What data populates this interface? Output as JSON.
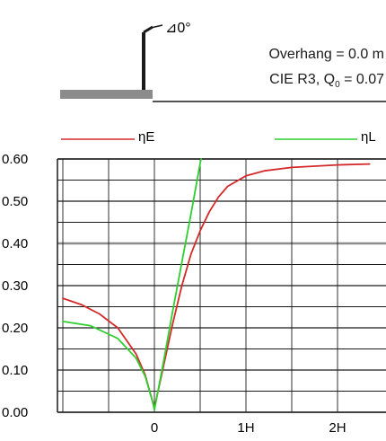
{
  "header": {
    "tilt_label": "⊿0°",
    "overhang": "Overhang =  0.0 m",
    "surface_prefix": "CIE R3, Q",
    "surface_sub": "0",
    "surface_suffix": " = 0.07"
  },
  "colors": {
    "eta_e": "#d42a2a",
    "eta_l": "#2fcf2f",
    "grid": "#1a1a1a",
    "highlight_grid": "#8c8c8c",
    "ground": "#8c8c8c"
  },
  "chart_data": {
    "type": "line",
    "x_ticks": [
      "0",
      "1H",
      "2H"
    ],
    "y_ticks": [
      "0.60",
      "0.50",
      "0.40",
      "0.30",
      "0.20",
      "0.10",
      "0.00"
    ],
    "ylim": [
      0,
      0.6
    ],
    "xlim": [
      -1.0,
      2.35
    ],
    "grid": true,
    "legend_position": "top",
    "series": [
      {
        "name": "ηE",
        "color": "#d42a2a",
        "points": [
          [
            -1.0,
            0.27
          ],
          [
            -0.8,
            0.255
          ],
          [
            -0.6,
            0.233
          ],
          [
            -0.4,
            0.2
          ],
          [
            -0.2,
            0.138
          ],
          [
            -0.1,
            0.088
          ],
          [
            -0.02,
            0.025
          ],
          [
            0.0,
            0.01
          ],
          [
            0.1,
            0.11
          ],
          [
            0.2,
            0.21
          ],
          [
            0.3,
            0.3
          ],
          [
            0.4,
            0.375
          ],
          [
            0.5,
            0.43
          ],
          [
            0.6,
            0.475
          ],
          [
            0.7,
            0.51
          ],
          [
            0.8,
            0.535
          ],
          [
            1.0,
            0.56
          ],
          [
            1.2,
            0.572
          ],
          [
            1.5,
            0.58
          ],
          [
            2.0,
            0.586
          ],
          [
            2.35,
            0.588
          ]
        ]
      },
      {
        "name": "ηL",
        "color": "#2fcf2f",
        "points": [
          [
            -1.0,
            0.215
          ],
          [
            -0.7,
            0.205
          ],
          [
            -0.4,
            0.175
          ],
          [
            -0.2,
            0.128
          ],
          [
            -0.1,
            0.085
          ],
          [
            -0.02,
            0.025
          ],
          [
            0.0,
            0.005
          ],
          [
            0.1,
            0.12
          ],
          [
            0.2,
            0.24
          ],
          [
            0.3,
            0.355
          ],
          [
            0.4,
            0.47
          ],
          [
            0.5,
            0.59
          ],
          [
            0.51,
            0.6
          ]
        ]
      }
    ]
  }
}
